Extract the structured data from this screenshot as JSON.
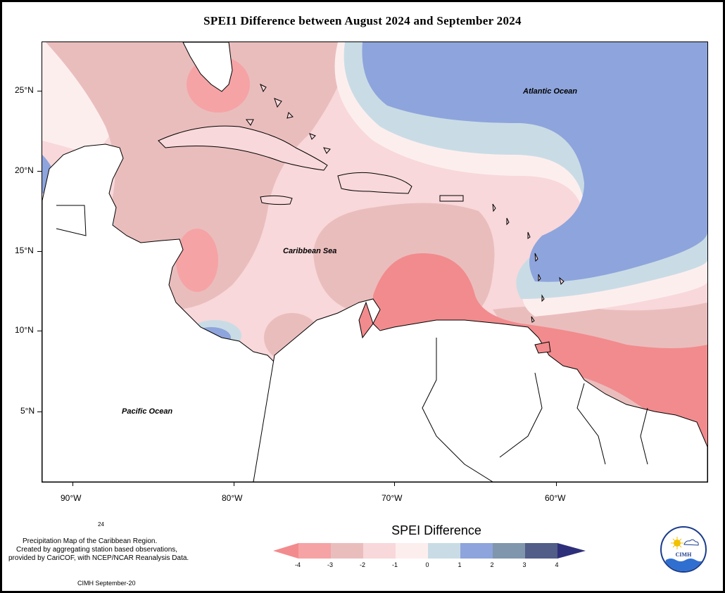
{
  "title": "SPEI1 Difference between August 2024 and September 2024",
  "map": {
    "labels": {
      "atlantic": "Atlantic Ocean",
      "caribbean": "Caribbean Sea",
      "pacific": "Pacific Ocean"
    },
    "lat_ticks": [
      "25°N",
      "20°N",
      "15°N",
      "10°N",
      "5°N"
    ],
    "lon_ticks": [
      "90°W",
      "80°W",
      "70°W",
      "60°W"
    ]
  },
  "footnote": {
    "number": "24",
    "line1": "Precipitation Map of the Caribbean Region.",
    "line2": "Created by aggregating station based observations,",
    "line3": "provided by CariCOF, with NCEP/NCAR Reanalysis Data.",
    "credit": "CIMH September-20"
  },
  "legend": {
    "title": "SPEI Difference",
    "ticks": [
      "-4",
      "-3",
      "-2",
      "-1",
      "0",
      "1",
      "2",
      "3",
      "4"
    ],
    "colors": [
      "#f28b8d",
      "#f6a3a5",
      "#eabdbd",
      "#f8d8da",
      "#fdeeee",
      "#c9dce5",
      "#8ea4dc",
      "#7f96ad",
      "#525d88",
      "#2e2f7a"
    ]
  },
  "logo": {
    "text": "CIMH"
  }
}
